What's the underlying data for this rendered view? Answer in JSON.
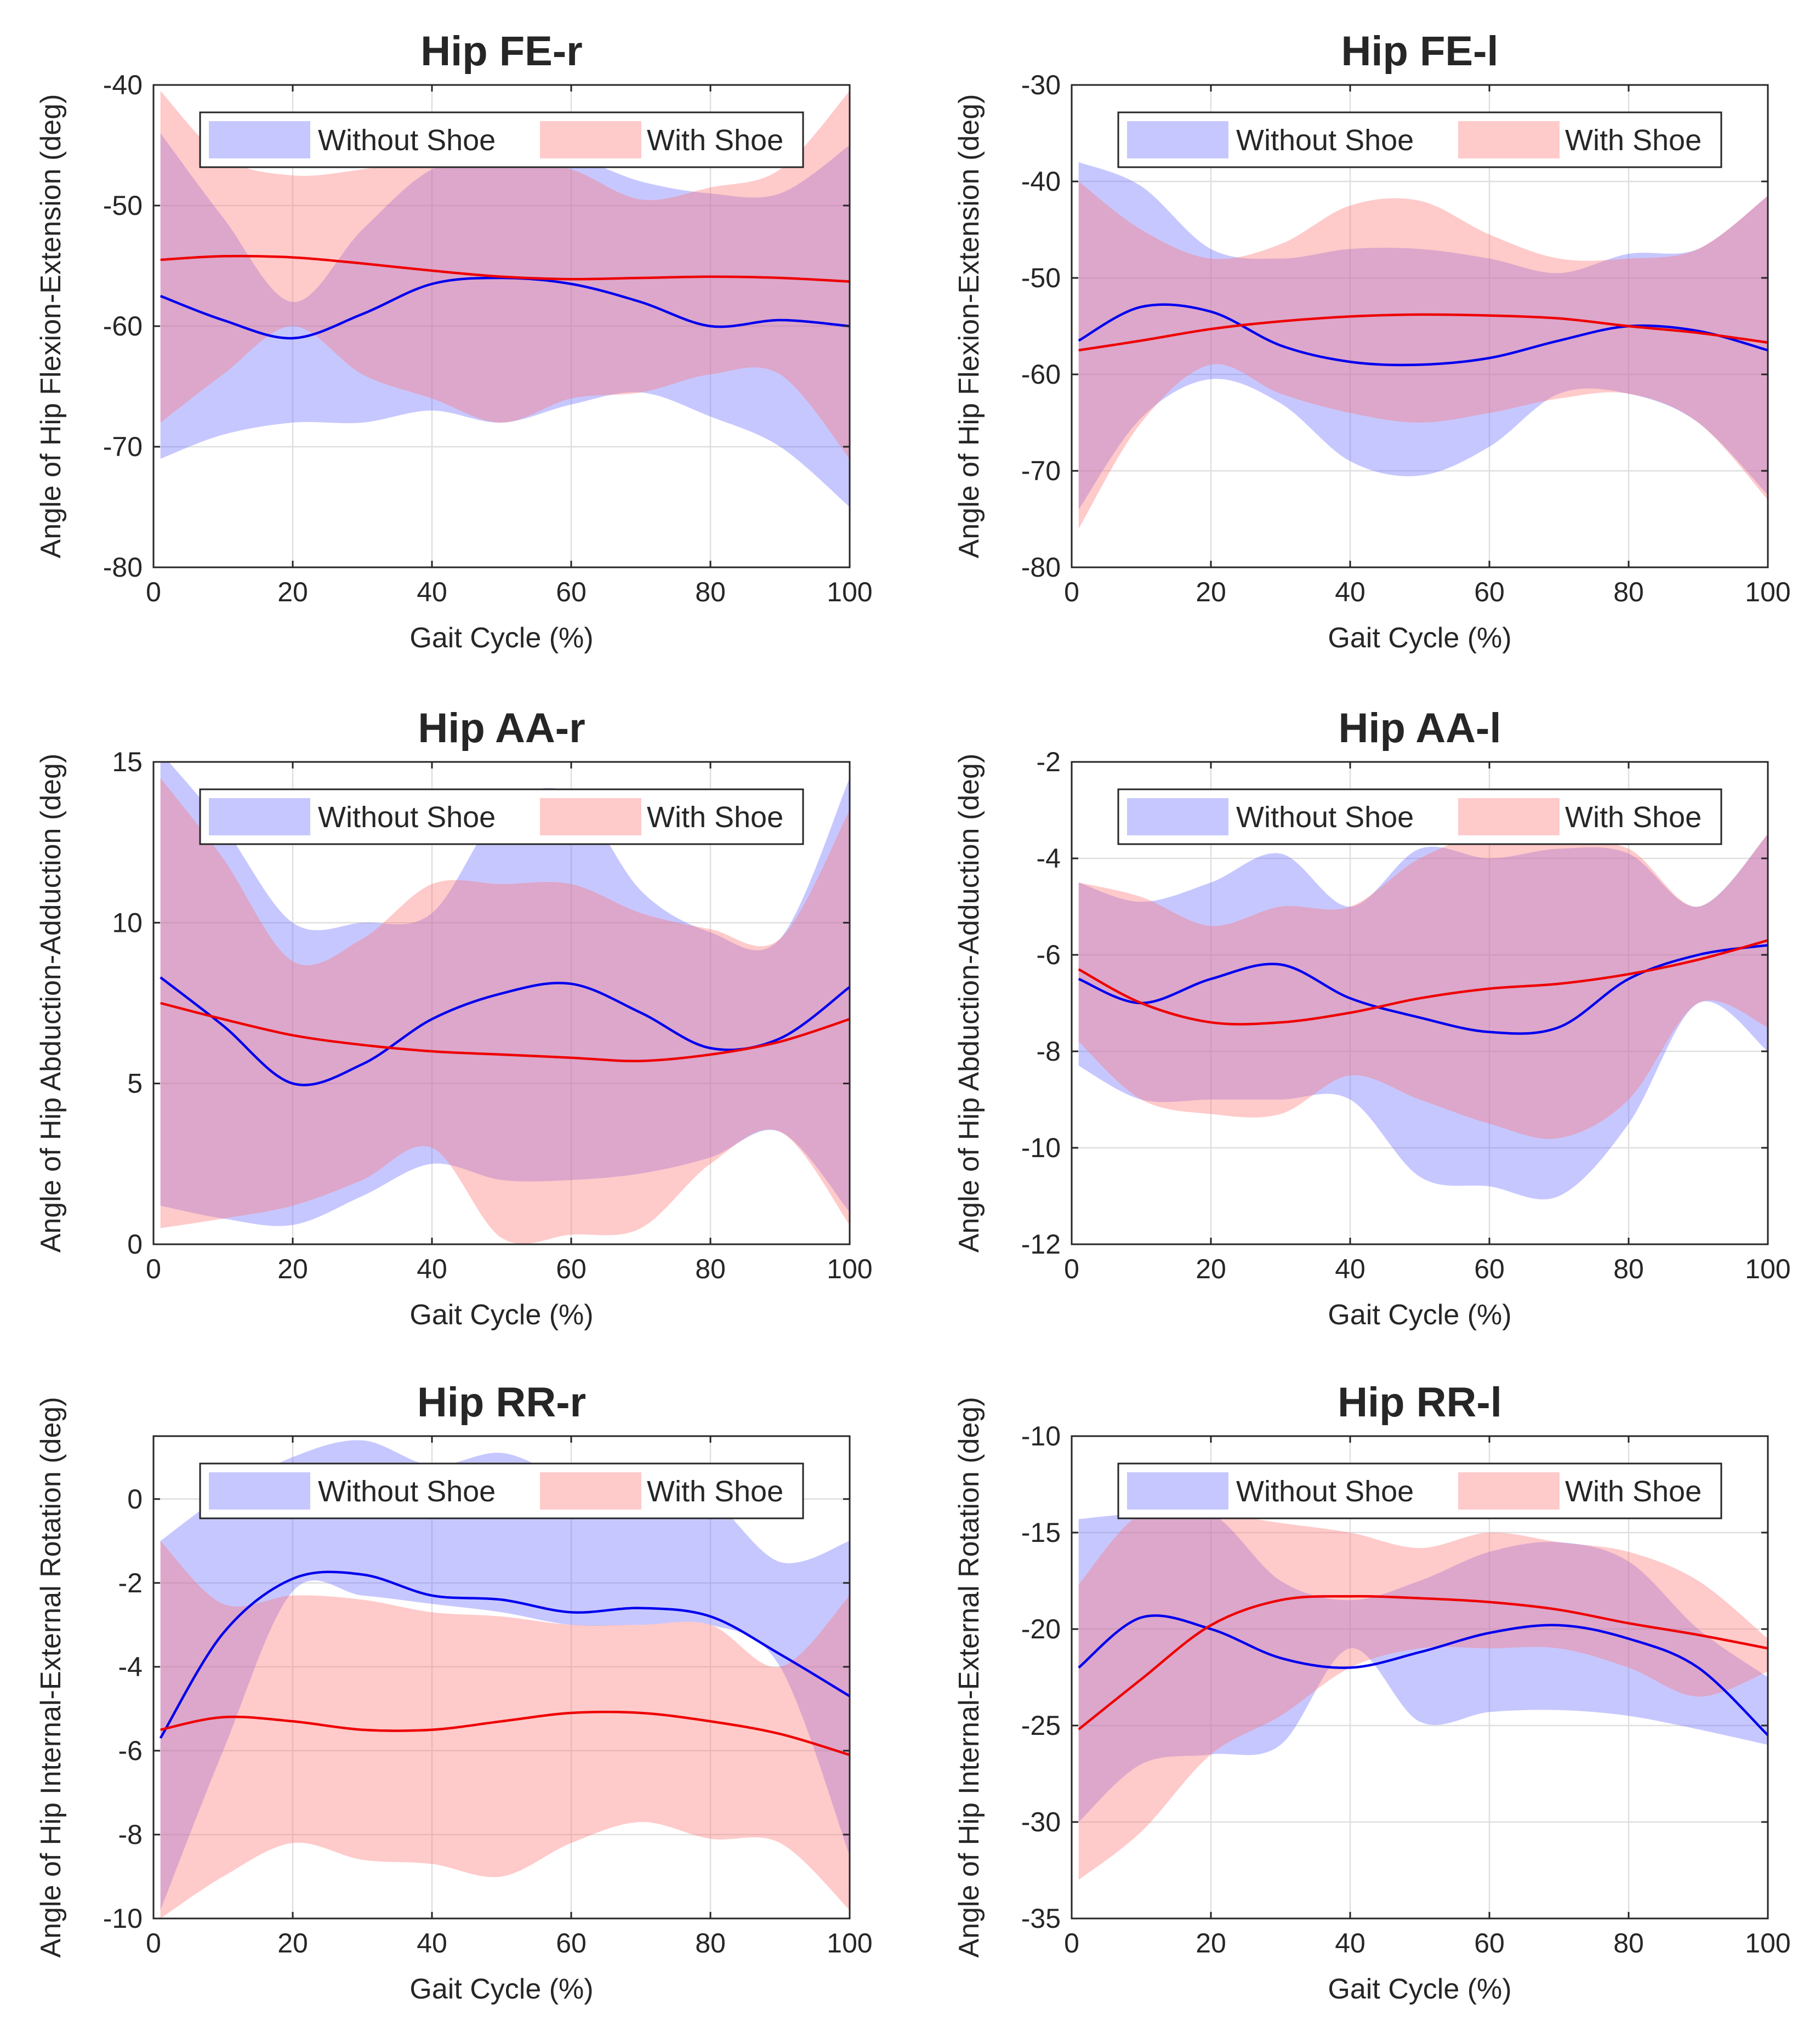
{
  "colors": {
    "without_shoe": "#6b6bff",
    "with_shoe": "#ff7373",
    "without_shoe_line": "#0000ee",
    "with_shoe_line": "#ee0000",
    "band_opacity": 0.38
  },
  "chart_data": [
    {
      "type": "area",
      "title": "Hip FE-r",
      "xlabel": "Gait Cycle (%)",
      "ylabel": "Angle of Hip Flexion-Extension (deg)",
      "xlim": [
        0,
        100
      ],
      "ylim": [
        -80,
        -40
      ],
      "xticks": [
        0,
        20,
        40,
        60,
        80,
        100
      ],
      "xtick_labels": [
        "0",
        "20",
        "40",
        "60",
        "80",
        "100"
      ],
      "yticks": [
        -80,
        -70,
        -60,
        -50,
        -40
      ],
      "ytick_labels": [
        "-80",
        "-70",
        "-60",
        "-50",
        "-40"
      ],
      "x": [
        1,
        10,
        20,
        30,
        40,
        50,
        60,
        70,
        80,
        90,
        100
      ],
      "series": [
        {
          "name": "Without Shoe",
          "role": "without_shoe",
          "mean": [
            -57.5,
            -59.5,
            -61,
            -59,
            -56.5,
            -56,
            -56.5,
            -58,
            -60,
            -59.5,
            -60
          ],
          "upper": [
            -44,
            -51,
            -58,
            -52,
            -47,
            -46,
            -46,
            -48,
            -49,
            -49,
            -45
          ],
          "lower": [
            -71,
            -69,
            -68,
            -68,
            -67,
            -68,
            -66.5,
            -65.5,
            -67.5,
            -70,
            -75
          ]
        },
        {
          "name": "With Shoe",
          "role": "with_shoe",
          "mean": [
            -54.5,
            -54.2,
            -54.3,
            -54.8,
            -55.4,
            -55.9,
            -56.1,
            -56,
            -55.9,
            -56,
            -56.3
          ],
          "upper": [
            -40.5,
            -46,
            -47.5,
            -47,
            -46,
            -46,
            -47,
            -49.5,
            -48.5,
            -47,
            -40.5
          ],
          "lower": [
            -68,
            -64,
            -60,
            -64,
            -66,
            -68,
            -66,
            -65.5,
            -64,
            -64,
            -71
          ]
        }
      ],
      "legend": [
        "Without Shoe",
        "With Shoe"
      ],
      "legend_position": "top"
    },
    {
      "type": "area",
      "title": "Hip FE-l",
      "xlabel": "Gait Cycle (%)",
      "ylabel": "Angle of Hip Flexion-Extension (deg)",
      "xlim": [
        0,
        100
      ],
      "ylim": [
        -80,
        -30
      ],
      "xticks": [
        0,
        20,
        40,
        60,
        80,
        100
      ],
      "xtick_labels": [
        "0",
        "20",
        "40",
        "60",
        "80",
        "100"
      ],
      "yticks": [
        -80,
        -70,
        -60,
        -50,
        -40,
        -30
      ],
      "ytick_labels": [
        "-80",
        "-70",
        "-60",
        "-50",
        "-40",
        "-30"
      ],
      "x": [
        1,
        10,
        20,
        30,
        40,
        50,
        60,
        70,
        80,
        90,
        100
      ],
      "series": [
        {
          "name": "Without Shoe",
          "role": "without_shoe",
          "mean": [
            -56.5,
            -53,
            -53.5,
            -57,
            -58.7,
            -59,
            -58.3,
            -56.5,
            -55,
            -55.5,
            -57.5
          ],
          "upper": [
            -38,
            -40.5,
            -47,
            -48,
            -47,
            -47,
            -48,
            -49.5,
            -47.5,
            -47,
            -41.5
          ],
          "lower": [
            -74,
            -64.5,
            -60.5,
            -63,
            -69,
            -70.5,
            -67.5,
            -62,
            -62,
            -65,
            -72.5
          ]
        },
        {
          "name": "With Shoe",
          "role": "with_shoe",
          "mean": [
            -57.5,
            -56.5,
            -55.3,
            -54.5,
            -54,
            -53.8,
            -53.9,
            -54.2,
            -55,
            -55.7,
            -56.7
          ],
          "upper": [
            -40,
            -45,
            -48,
            -46.5,
            -42.5,
            -42,
            -45.5,
            -48,
            -48,
            -47,
            -41.5
          ],
          "lower": [
            -76,
            -65,
            -59,
            -62,
            -64,
            -65,
            -64,
            -62.5,
            -62,
            -65,
            -73
          ]
        }
      ],
      "legend": [
        "Without Shoe",
        "With Shoe"
      ],
      "legend_position": "top"
    },
    {
      "type": "area",
      "title": "Hip AA-r",
      "xlabel": "Gait Cycle (%)",
      "ylabel": "Angle of Hip Abduction-Adduction (deg)",
      "xlim": [
        0,
        100
      ],
      "ylim": [
        0,
        15
      ],
      "xticks": [
        0,
        20,
        40,
        60,
        80,
        100
      ],
      "xtick_labels": [
        "0",
        "20",
        "40",
        "60",
        "80",
        "100"
      ],
      "yticks": [
        0,
        5,
        10,
        15
      ],
      "ytick_labels": [
        "0",
        "5",
        "10",
        "15"
      ],
      "x": [
        1,
        10,
        20,
        30,
        40,
        50,
        60,
        70,
        80,
        90,
        100
      ],
      "series": [
        {
          "name": "Without Shoe",
          "role": "without_shoe",
          "mean": [
            8.3,
            6.8,
            5,
            5.6,
            7,
            7.8,
            8.1,
            7.2,
            6.1,
            6.4,
            8
          ],
          "upper": [
            15.3,
            13,
            10,
            10,
            10.3,
            13.5,
            14,
            11,
            9.7,
            9.5,
            14.5
          ],
          "lower": [
            1.2,
            0.8,
            0.6,
            1.5,
            2.5,
            2,
            2,
            2.2,
            2.7,
            3.5,
            1
          ]
        },
        {
          "name": "With Shoe",
          "role": "with_shoe",
          "mean": [
            7.5,
            7,
            6.5,
            6.2,
            6,
            5.9,
            5.8,
            5.7,
            5.9,
            6.3,
            7
          ],
          "upper": [
            14.5,
            12,
            8.8,
            9.5,
            11.2,
            11.2,
            11.2,
            10.3,
            9.8,
            9.5,
            13.5
          ],
          "lower": [
            0.5,
            0.8,
            1.2,
            2,
            3,
            0.2,
            0.3,
            0.5,
            2.5,
            3.5,
            0.6
          ]
        }
      ],
      "legend": [
        "Without Shoe",
        "With Shoe"
      ],
      "legend_position": "top"
    },
    {
      "type": "area",
      "title": "Hip AA-l",
      "xlabel": "Gait Cycle (%)",
      "ylabel": "Angle of Hip Abduction-Adduction (deg)",
      "xlim": [
        0,
        100
      ],
      "ylim": [
        -12,
        -2
      ],
      "xticks": [
        0,
        20,
        40,
        60,
        80,
        100
      ],
      "xtick_labels": [
        "0",
        "20",
        "40",
        "60",
        "80",
        "100"
      ],
      "yticks": [
        -12,
        -10,
        -8,
        -6,
        -4,
        -2
      ],
      "ytick_labels": [
        "-12",
        "-10",
        "-8",
        "-6",
        "-4",
        "-2"
      ],
      "x": [
        1,
        10,
        20,
        30,
        40,
        50,
        60,
        70,
        80,
        90,
        100
      ],
      "series": [
        {
          "name": "Without Shoe",
          "role": "without_shoe",
          "mean": [
            -6.5,
            -7,
            -6.5,
            -6.2,
            -6.9,
            -7.3,
            -7.6,
            -7.5,
            -6.5,
            -6,
            -5.8
          ],
          "upper": [
            -4.5,
            -4.9,
            -4.5,
            -3.9,
            -5,
            -3.8,
            -4,
            -3.8,
            -3.9,
            -5,
            -3.5
          ],
          "lower": [
            -8.3,
            -9,
            -9,
            -9,
            -9,
            -10.6,
            -10.8,
            -11,
            -9.5,
            -7,
            -8
          ]
        },
        {
          "name": "With Shoe",
          "role": "with_shoe",
          "mean": [
            -6.3,
            -7,
            -7.4,
            -7.4,
            -7.2,
            -6.9,
            -6.7,
            -6.6,
            -6.4,
            -6.1,
            -5.7
          ],
          "upper": [
            -4.5,
            -4.8,
            -5.4,
            -5,
            -5,
            -4,
            -3.5,
            -3.7,
            -3.8,
            -5,
            -3.5
          ],
          "lower": [
            -7.8,
            -9,
            -9.3,
            -9.3,
            -8.5,
            -9,
            -9.5,
            -9.8,
            -9,
            -7,
            -7.5
          ]
        }
      ],
      "legend": [
        "Without Shoe",
        "With Shoe"
      ],
      "legend_position": "top"
    },
    {
      "type": "area",
      "title": "Hip RR-r",
      "xlabel": "Gait Cycle (%)",
      "ylabel": "Angle of Hip Internal-External Rotation (deg)",
      "xlim": [
        0,
        100
      ],
      "ylim": [
        -10,
        1.5
      ],
      "xticks": [
        0,
        20,
        40,
        60,
        80,
        100
      ],
      "xtick_labels": [
        "0",
        "20",
        "40",
        "60",
        "80",
        "100"
      ],
      "yticks": [
        -10,
        -8,
        -6,
        -4,
        -2,
        0
      ],
      "ytick_labels": [
        "-10",
        "-8",
        "-6",
        "-4",
        "-2",
        "0"
      ],
      "x": [
        1,
        10,
        20,
        30,
        40,
        50,
        60,
        70,
        80,
        90,
        100
      ],
      "series": [
        {
          "name": "Without Shoe",
          "role": "without_shoe",
          "mean": [
            -5.7,
            -3.2,
            -1.9,
            -1.8,
            -2.3,
            -2.4,
            -2.7,
            -2.6,
            -2.8,
            -3.7,
            -4.7
          ],
          "upper": [
            -1,
            0.1,
            1,
            1.4,
            0.8,
            1.1,
            0.5,
            0.5,
            0,
            -1.5,
            -1
          ],
          "lower": [
            -9.8,
            -6,
            -2.2,
            -2.3,
            -2.5,
            -2.7,
            -3,
            -3,
            -3,
            -4,
            -8.5
          ]
        },
        {
          "name": "With Shoe",
          "role": "with_shoe",
          "mean": [
            -5.5,
            -5.2,
            -5.3,
            -5.5,
            -5.5,
            -5.3,
            -5.1,
            -5.1,
            -5.3,
            -5.6,
            -6.1
          ],
          "upper": [
            -1,
            -2.5,
            -2.3,
            -2.4,
            -2.7,
            -2.8,
            -3,
            -3,
            -3,
            -4,
            -2.3
          ],
          "lower": [
            -10,
            -9,
            -8.2,
            -8.6,
            -8.7,
            -9,
            -8.2,
            -7.7,
            -8.1,
            -8.2,
            -9.8
          ]
        }
      ],
      "legend": [
        "Without Shoe",
        "With Shoe"
      ],
      "legend_position": "top"
    },
    {
      "type": "area",
      "title": "Hip RR-l",
      "xlabel": "Gait Cycle (%)",
      "ylabel": "Angle of Hip Internal-External Rotation (deg)",
      "xlim": [
        0,
        100
      ],
      "ylim": [
        -35,
        -10
      ],
      "xticks": [
        0,
        20,
        40,
        60,
        80,
        100
      ],
      "xtick_labels": [
        "0",
        "20",
        "40",
        "60",
        "80",
        "100"
      ],
      "yticks": [
        -35,
        -30,
        -25,
        -20,
        -15,
        -10
      ],
      "ytick_labels": [
        "-35",
        "-30",
        "-25",
        "-20",
        "-15",
        "-10"
      ],
      "x": [
        1,
        10,
        20,
        30,
        40,
        50,
        60,
        70,
        80,
        90,
        100
      ],
      "series": [
        {
          "name": "Without Shoe",
          "role": "without_shoe",
          "mean": [
            -22,
            -19.4,
            -20,
            -21.5,
            -22,
            -21.2,
            -20.2,
            -19.8,
            -20.5,
            -22,
            -25.5
          ],
          "upper": [
            -14.3,
            -14,
            -14,
            -17.5,
            -18.5,
            -17.5,
            -16,
            -15.5,
            -16.5,
            -20,
            -22.5
          ],
          "lower": [
            -30,
            -27,
            -26.5,
            -26,
            -21,
            -24.8,
            -24.3,
            -24.2,
            -24.5,
            -25.2,
            -26
          ]
        },
        {
          "name": "With Shoe",
          "role": "with_shoe",
          "mean": [
            -25.2,
            -22.6,
            -19.8,
            -18.5,
            -18.3,
            -18.4,
            -18.6,
            -19,
            -19.7,
            -20.3,
            -21
          ],
          "upper": [
            -17.7,
            -14,
            -14,
            -14.5,
            -15,
            -15.8,
            -15,
            -15.5,
            -16,
            -17.5,
            -20.5
          ],
          "lower": [
            -33,
            -30.5,
            -26.5,
            -24.5,
            -22,
            -21,
            -21,
            -21,
            -22,
            -23.5,
            -22.2
          ]
        }
      ],
      "legend": [
        "Without Shoe",
        "With Shoe"
      ],
      "legend_position": "top"
    }
  ]
}
